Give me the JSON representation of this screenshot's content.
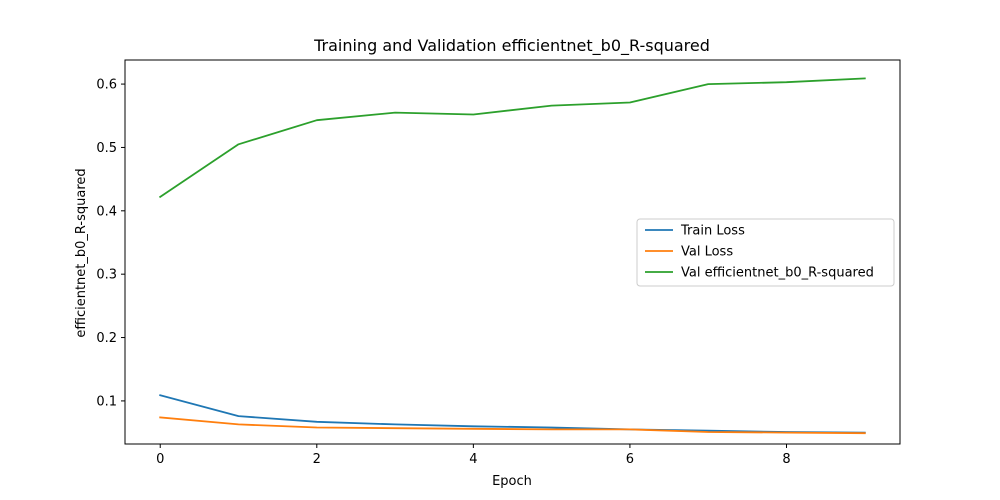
{
  "chart_data": {
    "type": "line",
    "title": "Training and Validation efficientnet_b0_R-squared",
    "xlabel": "Epoch",
    "ylabel": "efficientnet_b0_R-squared",
    "x": [
      0,
      1,
      2,
      3,
      4,
      5,
      6,
      7,
      8,
      9
    ],
    "xlim": [
      -0.45,
      9.45
    ],
    "ylim": [
      0.032,
      0.638
    ],
    "xticks": [
      0,
      2,
      4,
      6,
      8
    ],
    "yticks": [
      0.1,
      0.2,
      0.3,
      0.4,
      0.5,
      0.6
    ],
    "grid": false,
    "legend_position": "center-right",
    "series": [
      {
        "name": "Train Loss",
        "color": "#1f77b4",
        "values": [
          0.109,
          0.076,
          0.067,
          0.063,
          0.06,
          0.058,
          0.055,
          0.053,
          0.051,
          0.05
        ]
      },
      {
        "name": "Val Loss",
        "color": "#ff7f0e",
        "values": [
          0.074,
          0.063,
          0.058,
          0.057,
          0.056,
          0.055,
          0.055,
          0.051,
          0.05,
          0.049
        ]
      },
      {
        "name": "Val efficientnet_b0_R-squared",
        "color": "#2ca02c",
        "values": [
          0.422,
          0.505,
          0.543,
          0.555,
          0.552,
          0.566,
          0.571,
          0.6,
          0.603,
          0.609
        ]
      }
    ]
  }
}
